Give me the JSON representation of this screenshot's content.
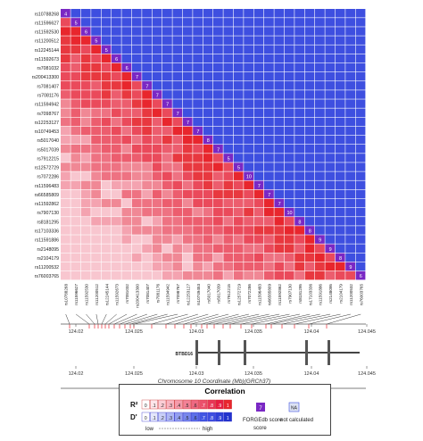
{
  "chart_data": {
    "type": "heatmap",
    "snps": [
      "rs10788268",
      "rs11596627",
      "rs11592530",
      "rs11200512",
      "rs12245144",
      "rs11592673",
      "rs7081032",
      "rs200413300",
      "rs7081407",
      "rs7081176",
      "rs11594942",
      "rs7098767",
      "rs12253127",
      "rs10749453",
      "rs5017040",
      "rs5017039",
      "rs7912215",
      "rs12572729",
      "rs7072286",
      "rs11596483",
      "rs66585809",
      "rs11592862",
      "rs7907130",
      "rs8181295",
      "rs17103336",
      "rs11591886",
      "rs2148095",
      "rs2104179",
      "rs11200532",
      "rs76003765"
    ],
    "forgedb_scores": [
      4,
      5,
      6,
      5,
      5,
      6,
      6,
      7,
      7,
      7,
      7,
      7,
      7,
      7,
      8,
      7,
      5,
      5,
      10,
      7,
      7,
      7,
      10,
      8,
      8,
      9,
      9,
      8,
      9,
      6
    ],
    "genomic_axis": {
      "ticks": [
        "124.02",
        "124.025",
        "124.03",
        "124.035",
        "124.04",
        "124.045"
      ],
      "xlabel": "Chromosome 10 Coordinate (Mb)(GRCh37)"
    },
    "gene_label": "BTBD16",
    "legend": {
      "title": "Correlation",
      "r2_label": "R²",
      "d_label": "D'",
      "scale_values": [
        "0",
        ".1",
        ".2",
        ".3",
        ".4",
        ".5",
        ".6",
        ".7",
        ".8",
        ".9",
        "1"
      ],
      "low_label": "low",
      "high_label": "high",
      "forgedb_swatch": "7",
      "forgedb_label": "FORGEdb score",
      "na_swatch": "NA",
      "na_label": "not calculated"
    },
    "colors": {
      "d_prime_high": "#3e4fe0",
      "r2_high": "#e8262d",
      "r2_mid": "#f06a78",
      "r2_low": "#f8c6cf",
      "forgedb": "#7a28c4"
    }
  }
}
